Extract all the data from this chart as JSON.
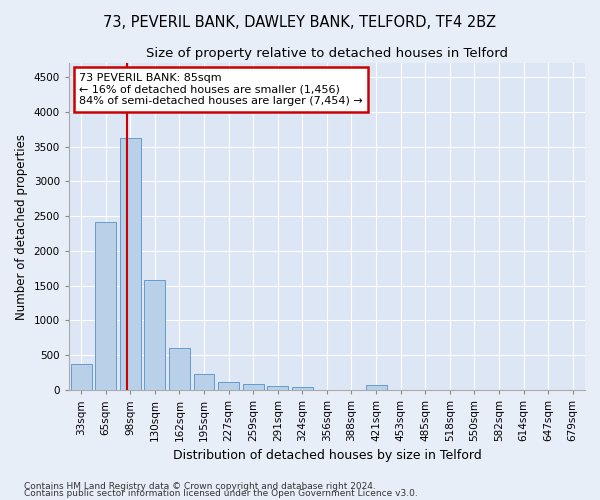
{
  "title1": "73, PEVERIL BANK, DAWLEY BANK, TELFORD, TF4 2BZ",
  "title2": "Size of property relative to detached houses in Telford",
  "xlabel": "Distribution of detached houses by size in Telford",
  "ylabel": "Number of detached properties",
  "categories": [
    "33sqm",
    "65sqm",
    "98sqm",
    "130sqm",
    "162sqm",
    "195sqm",
    "227sqm",
    "259sqm",
    "291sqm",
    "324sqm",
    "356sqm",
    "388sqm",
    "421sqm",
    "453sqm",
    "485sqm",
    "518sqm",
    "550sqm",
    "582sqm",
    "614sqm",
    "647sqm",
    "679sqm"
  ],
  "values": [
    370,
    2420,
    3620,
    1580,
    600,
    235,
    110,
    80,
    55,
    38,
    0,
    0,
    65,
    0,
    0,
    0,
    0,
    0,
    0,
    0,
    0
  ],
  "bar_color": "#b8d0e8",
  "bar_edge_color": "#6699cc",
  "vline_x": 1.85,
  "annotation_text": "73 PEVERIL BANK: 85sqm\n← 16% of detached houses are smaller (1,456)\n84% of semi-detached houses are larger (7,454) →",
  "annotation_box_color": "#ffffff",
  "annotation_box_edge": "#cc0000",
  "vline_color": "#cc0000",
  "ylim": [
    0,
    4700
  ],
  "yticks": [
    0,
    500,
    1000,
    1500,
    2000,
    2500,
    3000,
    3500,
    4000,
    4500
  ],
  "footer1": "Contains HM Land Registry data © Crown copyright and database right 2024.",
  "footer2": "Contains public sector information licensed under the Open Government Licence v3.0.",
  "bg_color": "#e8eef8",
  "plot_bg_color": "#dce6f5",
  "grid_color": "#ffffff",
  "title1_fontsize": 10.5,
  "title2_fontsize": 9.5,
  "annotation_fontsize": 8,
  "ylabel_fontsize": 8.5,
  "xlabel_fontsize": 9,
  "tick_fontsize": 7.5,
  "footer_fontsize": 6.5
}
